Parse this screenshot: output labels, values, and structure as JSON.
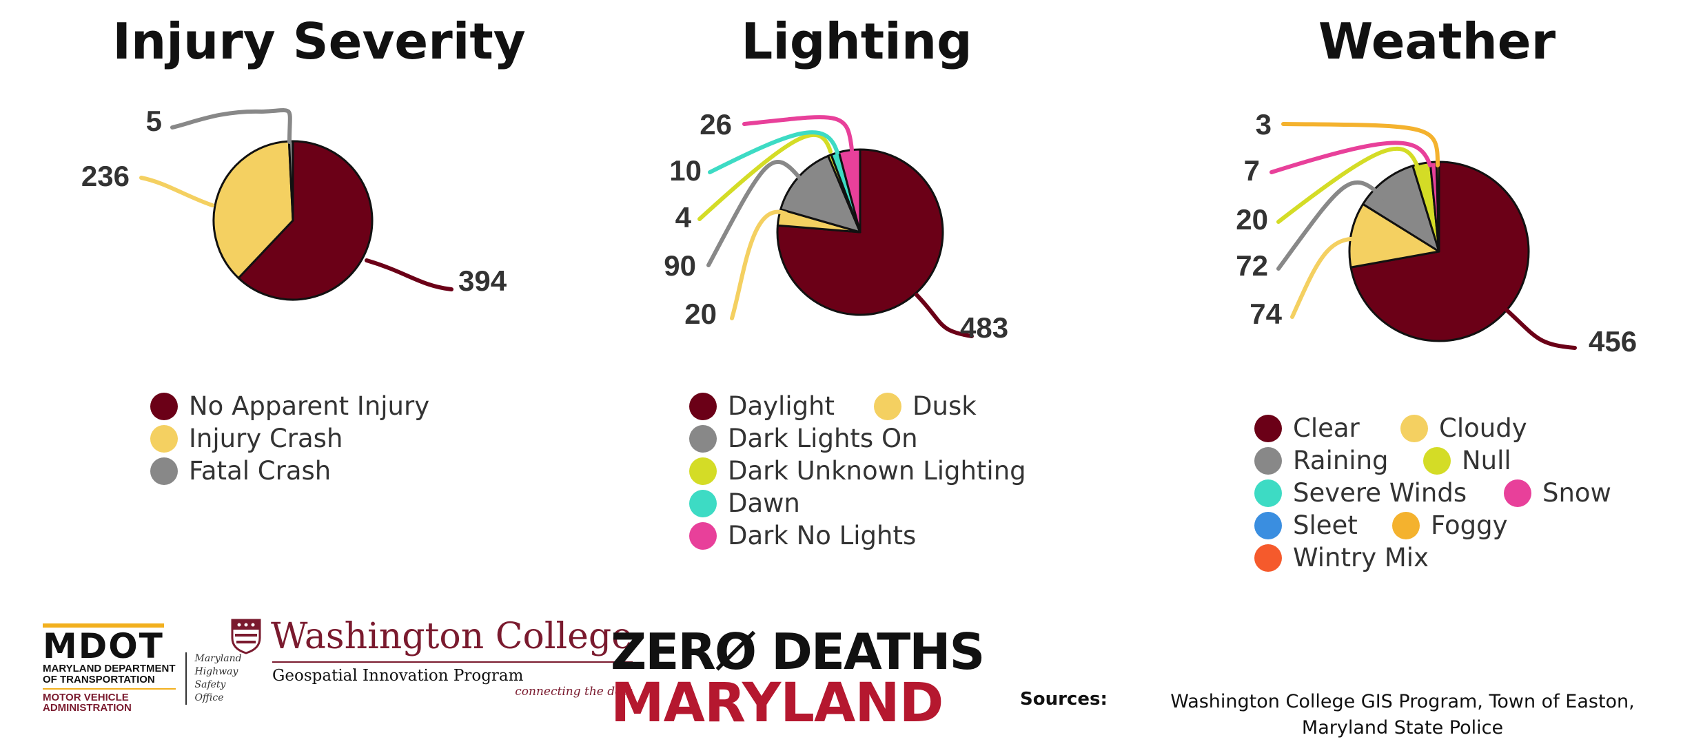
{
  "chart_data": [
    {
      "type": "pie",
      "title": "Injury Severity",
      "slices": [
        {
          "label": "No Apparent Injury",
          "value": 394,
          "color": "#6b0017"
        },
        {
          "label": "Injury Crash",
          "value": 236,
          "color": "#f4d061"
        },
        {
          "label": "Fatal Crash",
          "value": 5,
          "color": "#888888"
        }
      ],
      "legend": [
        {
          "label": "No Apparent Injury",
          "color": "#6b0017"
        },
        {
          "label": "Injury Crash",
          "color": "#f4d061"
        },
        {
          "label": "Fatal Crash",
          "color": "#888888"
        }
      ]
    },
    {
      "type": "pie",
      "title": "Lighting",
      "slices": [
        {
          "label": "Daylight",
          "value": 483,
          "color": "#6b0017"
        },
        {
          "label": "Dusk",
          "value": 20,
          "color": "#f4d061"
        },
        {
          "label": "Dark Lights On",
          "value": 90,
          "color": "#888888"
        },
        {
          "label": "Dark Unknown Lighting",
          "value": 4,
          "color": "#d4dc26"
        },
        {
          "label": "Dawn",
          "value": 10,
          "color": "#3ddbc4"
        },
        {
          "label": "Dark No Lights",
          "value": 26,
          "color": "#e8409a"
        }
      ],
      "legend": [
        {
          "label": "Daylight",
          "color": "#6b0017"
        },
        {
          "label": "Dusk",
          "color": "#f4d061"
        },
        {
          "label": "Dark Lights On",
          "color": "#888888"
        },
        {
          "label": "Dark Unknown Lighting",
          "color": "#d4dc26"
        },
        {
          "label": "Dawn",
          "color": "#3ddbc4"
        },
        {
          "label": "Dark No Lights",
          "color": "#e8409a"
        }
      ]
    },
    {
      "type": "pie",
      "title": "Weather",
      "slices": [
        {
          "label": "Clear",
          "value": 456,
          "color": "#6b0017"
        },
        {
          "label": "Cloudy",
          "value": 74,
          "color": "#f4d061"
        },
        {
          "label": "Raining",
          "value": 72,
          "color": "#888888"
        },
        {
          "label": "Null",
          "value": 20,
          "color": "#d4dc26"
        },
        {
          "label": "Snow",
          "value": 7,
          "color": "#e8409a"
        },
        {
          "label": "Foggy",
          "value": 3,
          "color": "#f4b22e"
        }
      ],
      "legend": [
        {
          "label": "Clear",
          "color": "#6b0017"
        },
        {
          "label": "Cloudy",
          "color": "#f4d061"
        },
        {
          "label": "Raining",
          "color": "#888888"
        },
        {
          "label": "Null",
          "color": "#d4dc26"
        },
        {
          "label": "Severe Winds",
          "color": "#3ddbc4"
        },
        {
          "label": "Snow",
          "color": "#e8409a"
        },
        {
          "label": "Sleet",
          "color": "#3a8ee0"
        },
        {
          "label": "Foggy",
          "color": "#f4b22e"
        },
        {
          "label": "Wintry Mix",
          "color": "#f55a2c"
        }
      ]
    }
  ],
  "logos": {
    "mdot": {
      "mark": "MDOT",
      "line1": "MARYLAND DEPARTMENT",
      "line2": "OF TRANSPORTATION",
      "line3": "MOTOR VEHICLE",
      "line4": "ADMINISTRATION",
      "office1": "Maryland",
      "office2": "Highway",
      "office3": "Safety",
      "office4": "Office"
    },
    "washington_college": {
      "name": "Washington College",
      "program": "Geospatial Innovation Program",
      "tagline": "connecting the dots"
    },
    "zero_deaths": {
      "line1": "ZERØ DEATHS",
      "line2": "MARYLAND"
    }
  },
  "sources": {
    "label": "Sources:",
    "line1": "Washington College GIS Program, Town of Easton,",
    "line2": "Maryland State Police"
  }
}
